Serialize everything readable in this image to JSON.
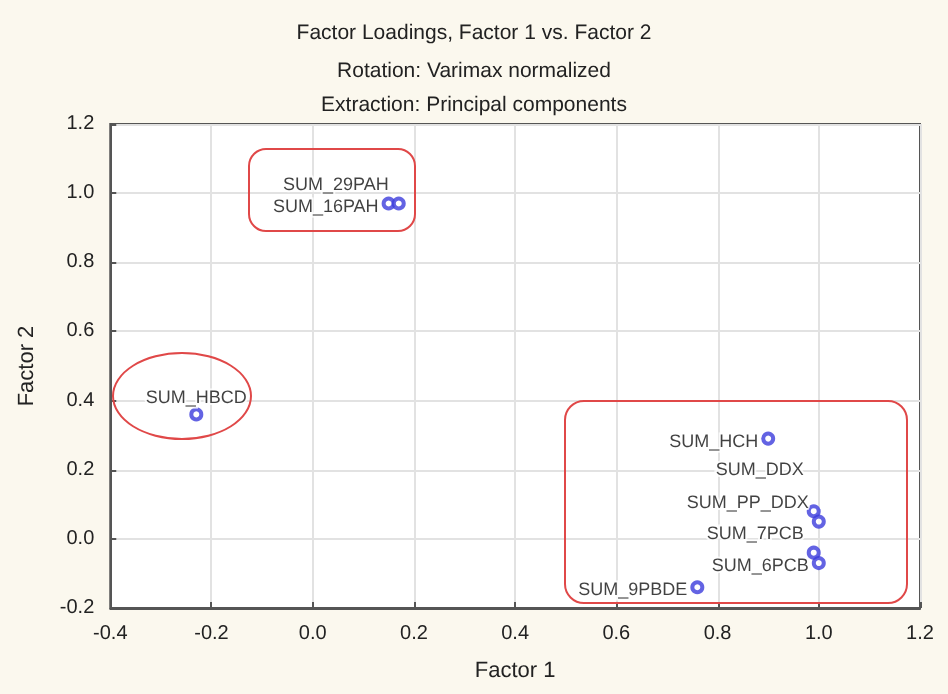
{
  "chart_data": {
    "type": "scatter",
    "title": "Factor Loadings, Factor 1 vs. Factor 2",
    "subtitle": "Rotation: Varimax normalized\nExtraction: Principal components",
    "xlabel": "Factor 1",
    "ylabel": "Factor 2",
    "series": [
      {
        "color": "#3c3cdc",
        "x": [
          0.15,
          0.17,
          -0.23,
          0.9,
          0.99,
          1.0,
          0.99,
          1.0,
          0.76
        ],
        "values": [
          0.97,
          0.97,
          0.36,
          0.29,
          0.08,
          0.05,
          -0.04,
          -0.07,
          -0.14
        ]
      }
    ],
    "annotations": [
      {
        "text": "SUM_29PAH",
        "x": 0.17,
        "y": 0.97
      },
      {
        "text": "SUM_16PAH",
        "x": 0.15,
        "y": 0.97
      },
      {
        "text": "SUM_HBCD",
        "x": -0.23,
        "y": 0.36
      },
      {
        "text": "SUM_HCH",
        "x": 0.9,
        "y": 0.29
      },
      {
        "text": "SUM_DDX",
        "x": 0.99,
        "y": 0.08
      },
      {
        "text": "SUM_PP_DDX",
        "x": 1.0,
        "y": 0.05
      },
      {
        "text": "SUM_7PCB",
        "x": 0.99,
        "y": -0.04
      },
      {
        "text": "SUM_6PCB",
        "x": 1.0,
        "y": -0.07
      },
      {
        "text": "SUM_9PBDE",
        "x": 0.76,
        "y": -0.14
      }
    ],
    "xlim": [
      -0.4,
      1.2
    ],
    "xticks": [
      {
        "value": -0.4,
        "label": "-0.4"
      },
      {
        "value": -0.2,
        "label": "-0.2"
      },
      {
        "value": 0,
        "label": "0.0"
      },
      {
        "value": 0.2,
        "label": "0.2"
      },
      {
        "value": 0.4,
        "label": "0.4"
      },
      {
        "value": 0.6,
        "label": "0.6"
      },
      {
        "value": 0.8,
        "label": "0.8"
      },
      {
        "value": 1,
        "label": "1.0"
      },
      {
        "value": 1.2,
        "label": "1.2"
      }
    ],
    "ylim": [
      -0.2,
      1.2
    ],
    "yticks": [
      {
        "value": -0.2,
        "label": "-0.2"
      },
      {
        "value": 0,
        "label": "0.0"
      },
      {
        "value": 0.2,
        "label": "0.2"
      },
      {
        "value": 0.4,
        "label": "0.4"
      },
      {
        "value": 0.6,
        "label": "0.6"
      },
      {
        "value": 0.8,
        "label": "0.8"
      },
      {
        "value": 1,
        "label": "1.0"
      },
      {
        "value": 1.2,
        "label": "1.2"
      }
    ],
    "grid": true,
    "marker": "circle"
  }
}
